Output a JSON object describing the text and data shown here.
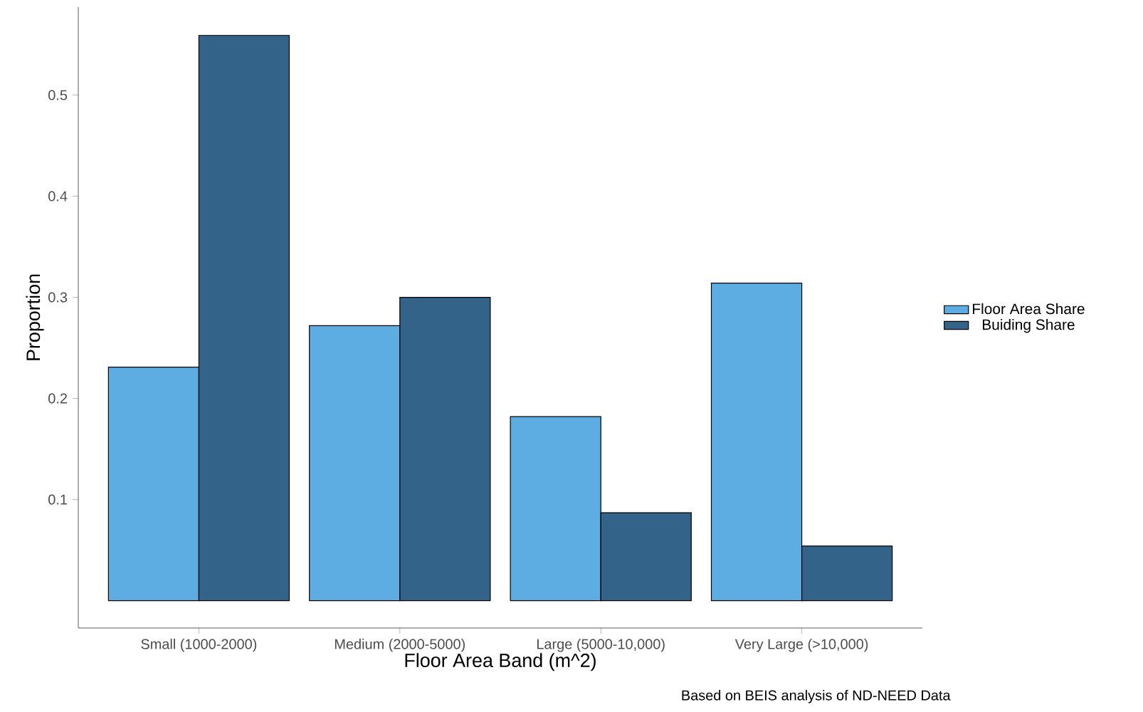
{
  "chart_data": {
    "type": "bar",
    "categories": [
      "Small (1000-2000)",
      "Medium (2000-5000)",
      "Large (5000-10,000)",
      "Very Large (>10,000)"
    ],
    "series": [
      {
        "name": "Floor Area Share",
        "color": "#5dade2",
        "values": [
          0.231,
          0.272,
          0.182,
          0.314
        ]
      },
      {
        "name": "Buiding Share",
        "color": "#34638a",
        "values": [
          0.559,
          0.3,
          0.087,
          0.054
        ]
      }
    ],
    "xlabel": "Floor Area Band (m^2)",
    "ylabel": "Proportion",
    "ylim": [
      -0.027,
      0.587
    ],
    "yticks": [
      0.1,
      0.2,
      0.3,
      0.4,
      0.5
    ],
    "annotations": [
      "Based on BEIS analysis of ND-NEED Data"
    ],
    "grid": false,
    "legend": "right"
  }
}
